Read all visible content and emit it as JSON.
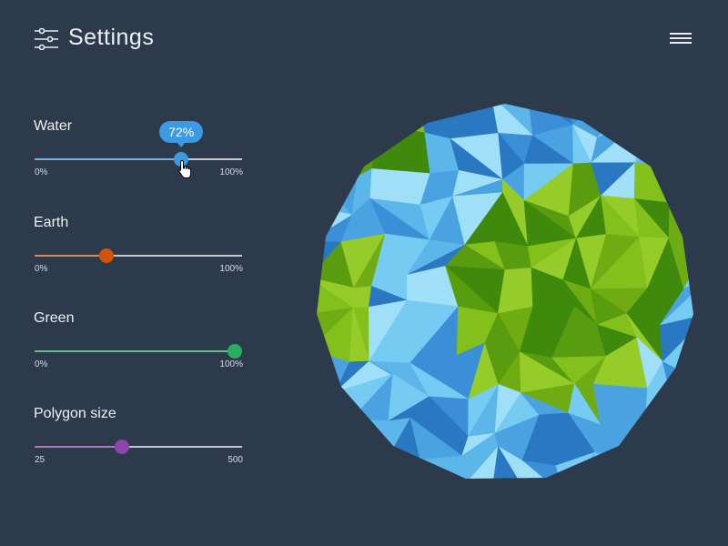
{
  "header": {
    "title": "Settings",
    "settings_icon": "sliders-icon",
    "menu_icon": "hamburger-menu-icon"
  },
  "sliders": [
    {
      "label": "Water",
      "value": 72,
      "min_label": "0%",
      "max_label": "100%",
      "min": 0,
      "max": 100,
      "color": "#3d9ae2",
      "fill_color": "#7fb0d9",
      "tooltip": "72%"
    },
    {
      "label": "Earth",
      "value": 33,
      "min_label": "0%",
      "max_label": "100%",
      "min": 0,
      "max": 100,
      "color": "#d35400",
      "fill_color": "#d98a5a"
    },
    {
      "label": "Green",
      "value": 100,
      "min_label": "0%",
      "max_label": "100%",
      "min": 0,
      "max": 100,
      "color": "#27ae60",
      "fill_color": "#5fc08a"
    },
    {
      "label": "Polygon size",
      "value": 220,
      "min_label": "25",
      "max_label": "500",
      "min": 25,
      "max": 500,
      "color": "#8e44ad",
      "fill_color": "#a77bbd"
    }
  ],
  "globe": {
    "water_colors": [
      "#2a78c2",
      "#3b8fd6",
      "#4aa3e0",
      "#5cb6ea",
      "#75cbf2",
      "#9fe0f8"
    ],
    "earth_colors": [
      "#3f8a0c",
      "#5a9c10",
      "#6fac14",
      "#84c01c",
      "#95cc2a"
    ]
  }
}
